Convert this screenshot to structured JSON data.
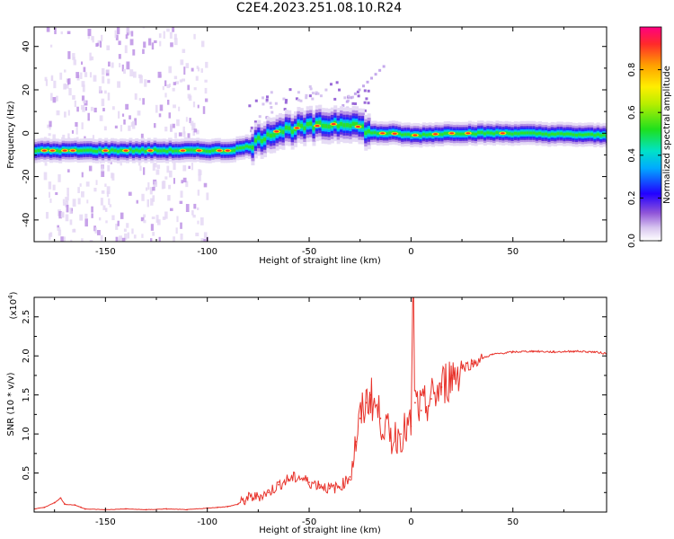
{
  "title": "C2E4.2023.251.08.10.R24",
  "chart_data": [
    {
      "type": "heatmap",
      "title": "C2E4.2023.251.08.10.R24",
      "xlabel": "Height of straight line (km)",
      "ylabel": "Frequency (Hz)",
      "xlim": [
        -185,
        96
      ],
      "ylim": [
        -50,
        49
      ],
      "xticks": [
        -150,
        -100,
        -50,
        0,
        50
      ],
      "yticks": [
        -40,
        -20,
        0,
        20,
        40
      ],
      "ridge": {
        "x": [
          -185,
          -160,
          -120,
          -90,
          -80,
          -70,
          -60,
          -50,
          -40,
          -30,
          -20,
          -10,
          0,
          20,
          50,
          96
        ],
        "freq": [
          -8,
          -8,
          -8,
          -8,
          -6,
          0,
          2,
          3,
          4,
          5,
          0,
          0,
          -1,
          0,
          0,
          -1
        ]
      },
      "colorbar": {
        "label": "Normalized spectral amplitude",
        "ticks": [
          0.0,
          0.2,
          0.4,
          0.6,
          0.8
        ],
        "range": [
          0,
          1
        ]
      }
    },
    {
      "type": "line",
      "xlabel": "Height of straight line (km)",
      "ylabel": "SNR (10 * v/v)",
      "scale_label": "(x10",
      "scale_exp": "4",
      "scale_close": ")",
      "xlim": [
        -185,
        96
      ],
      "ylim": [
        0,
        2.75
      ],
      "xticks": [
        -150,
        -100,
        -50,
        0,
        50
      ],
      "yticks": [
        0.5,
        1.0,
        1.5,
        2.0,
        2.5
      ],
      "color": "#e8332b",
      "series": [
        {
          "name": "SNR",
          "x": [
            -185,
            -180,
            -175,
            -172,
            -170,
            -165,
            -162,
            -160,
            -150,
            -140,
            -130,
            -120,
            -110,
            -100,
            -95,
            -90,
            -85,
            -82,
            -80,
            -75,
            -70,
            -65,
            -60,
            -55,
            -50,
            -45,
            -40,
            -35,
            -30,
            -27,
            -25,
            -22,
            -20,
            -15,
            -10,
            -5,
            0,
            1,
            2,
            5,
            10,
            15,
            20,
            25,
            30,
            35,
            40,
            50,
            60,
            70,
            80,
            90,
            96
          ],
          "y": [
            0.04,
            0.06,
            0.12,
            0.18,
            0.1,
            0.09,
            0.06,
            0.04,
            0.03,
            0.04,
            0.03,
            0.04,
            0.03,
            0.05,
            0.06,
            0.07,
            0.1,
            0.14,
            0.18,
            0.2,
            0.25,
            0.35,
            0.42,
            0.45,
            0.38,
            0.35,
            0.3,
            0.32,
            0.45,
            0.9,
            1.2,
            1.4,
            1.5,
            1.2,
            0.95,
            1.0,
            1.1,
            2.7,
            1.4,
            1.3,
            1.45,
            1.6,
            1.75,
            1.85,
            1.9,
            1.97,
            2.02,
            2.05,
            2.06,
            2.05,
            2.06,
            2.05,
            2.03
          ]
        }
      ]
    }
  ]
}
